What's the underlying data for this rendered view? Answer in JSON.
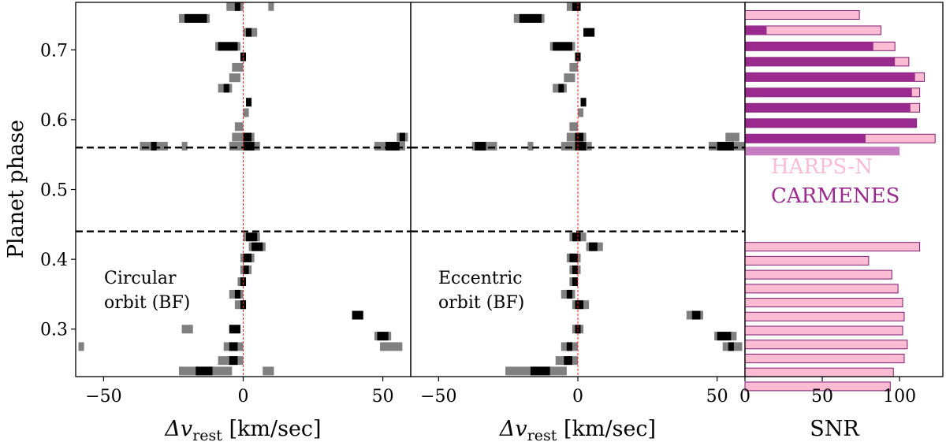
{
  "chart_data": [
    {
      "type": "heatmap",
      "panel": "circular",
      "annotation": [
        "Circular",
        "orbit (BF)"
      ],
      "ylabel": "Planet phase",
      "xlabel_main": "Δv",
      "xlabel_sub": "rest",
      "xlabel_unit": " [km/sec]",
      "xlim": [
        -60,
        60
      ],
      "ylim": [
        0.232,
        0.768
      ],
      "xticks": [
        -50,
        0,
        50
      ],
      "xtick_labels": [
        "−50",
        "0",
        "50"
      ],
      "yticks": [
        0.3,
        0.4,
        0.5,
        0.6,
        0.7
      ],
      "ytick_labels": [
        "0.3",
        "0.4",
        "0.5",
        "0.6",
        "0.7"
      ],
      "dashed_lines": [
        0.56,
        0.44
      ],
      "rest_line_x": 0,
      "cells": [
        {
          "phase": 0.762,
          "x0": -6,
          "x1": 0,
          "level": "gray"
        },
        {
          "phase": 0.762,
          "x0": -3,
          "x1": -1,
          "level": "black"
        },
        {
          "phase": 0.762,
          "x0": 9,
          "x1": 11,
          "level": "gray"
        },
        {
          "phase": 0.745,
          "x0": -23,
          "x1": -12,
          "level": "gray"
        },
        {
          "phase": 0.745,
          "x0": -21,
          "x1": -13,
          "level": "black"
        },
        {
          "phase": 0.725,
          "x0": 0,
          "x1": 5,
          "level": "gray"
        },
        {
          "phase": 0.725,
          "x0": 1,
          "x1": 3,
          "level": "black"
        },
        {
          "phase": 0.705,
          "x0": -10,
          "x1": -1,
          "level": "gray"
        },
        {
          "phase": 0.705,
          "x0": -9,
          "x1": -2,
          "level": "black"
        },
        {
          "phase": 0.69,
          "x0": -1,
          "x1": 1,
          "level": "black"
        },
        {
          "phase": 0.675,
          "x0": -4,
          "x1": 0,
          "level": "gray"
        },
        {
          "phase": 0.66,
          "x0": -5,
          "x1": -1,
          "level": "gray"
        },
        {
          "phase": 0.645,
          "x0": -9,
          "x1": -4,
          "level": "gray"
        },
        {
          "phase": 0.645,
          "x0": -7,
          "x1": -5,
          "level": "black"
        },
        {
          "phase": 0.625,
          "x0": 1,
          "x1": 3,
          "level": "black"
        },
        {
          "phase": 0.61,
          "x0": 0,
          "x1": 2,
          "level": "gray"
        },
        {
          "phase": 0.59,
          "x0": -3,
          "x1": 0,
          "level": "gray"
        },
        {
          "phase": 0.575,
          "x0": -4,
          "x1": 4,
          "level": "gray"
        },
        {
          "phase": 0.575,
          "x0": 0,
          "x1": 3,
          "level": "black"
        },
        {
          "phase": 0.575,
          "x0": 55,
          "x1": 59,
          "level": "gray"
        },
        {
          "phase": 0.575,
          "x0": 56,
          "x1": 58,
          "level": "black"
        },
        {
          "phase": 0.562,
          "x0": -37,
          "x1": -27,
          "level": "gray"
        },
        {
          "phase": 0.562,
          "x0": -33,
          "x1": -31,
          "level": "black"
        },
        {
          "phase": 0.562,
          "x0": -22,
          "x1": -20,
          "level": "gray"
        },
        {
          "phase": 0.562,
          "x0": -5,
          "x1": 6,
          "level": "gray"
        },
        {
          "phase": 0.562,
          "x0": 0,
          "x1": 4,
          "level": "black"
        },
        {
          "phase": 0.562,
          "x0": 47,
          "x1": 58,
          "level": "gray"
        },
        {
          "phase": 0.562,
          "x0": 51,
          "x1": 56,
          "level": "black"
        },
        {
          "phase": 0.432,
          "x0": 0,
          "x1": 6,
          "level": "gray"
        },
        {
          "phase": 0.432,
          "x0": 1,
          "x1": 5,
          "level": "black"
        },
        {
          "phase": 0.418,
          "x0": 2,
          "x1": 8,
          "level": "gray"
        },
        {
          "phase": 0.418,
          "x0": 3,
          "x1": 7,
          "level": "black"
        },
        {
          "phase": 0.402,
          "x0": -1,
          "x1": 4,
          "level": "gray"
        },
        {
          "phase": 0.402,
          "x0": 0,
          "x1": 3,
          "level": "black"
        },
        {
          "phase": 0.385,
          "x0": -1,
          "x1": 3,
          "level": "gray"
        },
        {
          "phase": 0.385,
          "x0": 0,
          "x1": 2,
          "level": "black"
        },
        {
          "phase": 0.368,
          "x0": -2,
          "x1": 1,
          "level": "gray"
        },
        {
          "phase": 0.368,
          "x0": -1,
          "x1": 1,
          "level": "black"
        },
        {
          "phase": 0.35,
          "x0": -5,
          "x1": 0,
          "level": "gray"
        },
        {
          "phase": 0.35,
          "x0": -3,
          "x1": -1,
          "level": "black"
        },
        {
          "phase": 0.335,
          "x0": -3,
          "x1": 1,
          "level": "gray"
        },
        {
          "phase": 0.335,
          "x0": -1,
          "x1": 1,
          "level": "black"
        },
        {
          "phase": 0.32,
          "x0": 39,
          "x1": 43,
          "level": "black"
        },
        {
          "phase": 0.3,
          "x0": -22,
          "x1": -18,
          "level": "gray"
        },
        {
          "phase": 0.3,
          "x0": -5,
          "x1": -1,
          "level": "black"
        },
        {
          "phase": 0.29,
          "x0": 47,
          "x1": 53,
          "level": "gray"
        },
        {
          "phase": 0.29,
          "x0": 48,
          "x1": 52,
          "level": "black"
        },
        {
          "phase": 0.275,
          "x0": -7,
          "x1": 0,
          "level": "gray"
        },
        {
          "phase": 0.275,
          "x0": -5,
          "x1": -2,
          "level": "black"
        },
        {
          "phase": 0.275,
          "x0": -59,
          "x1": -57,
          "level": "gray"
        },
        {
          "phase": 0.275,
          "x0": 49,
          "x1": 57,
          "level": "gray"
        },
        {
          "phase": 0.255,
          "x0": -9,
          "x1": 0,
          "level": "gray"
        },
        {
          "phase": 0.255,
          "x0": -5,
          "x1": -2,
          "level": "black"
        },
        {
          "phase": 0.24,
          "x0": -23,
          "x1": -4,
          "level": "gray"
        },
        {
          "phase": 0.24,
          "x0": -17,
          "x1": -11,
          "level": "black"
        },
        {
          "phase": 0.24,
          "x0": 7,
          "x1": 11,
          "level": "gray"
        }
      ]
    },
    {
      "type": "heatmap",
      "panel": "eccentric",
      "annotation": [
        "Eccentric",
        "orbit (BF)"
      ],
      "xlabel_main": "Δv",
      "xlabel_sub": "rest",
      "xlabel_unit": " [km/sec]",
      "xlim": [
        -60,
        60
      ],
      "ylim": [
        0.232,
        0.768
      ],
      "xticks": [
        -50,
        0,
        50
      ],
      "xtick_labels": [
        "−50",
        "0",
        "50"
      ],
      "dashed_lines": [
        0.56,
        0.44
      ],
      "rest_line_x": 0,
      "cells": [
        {
          "phase": 0.762,
          "x0": -4,
          "x1": 1,
          "level": "gray"
        },
        {
          "phase": 0.762,
          "x0": -2,
          "x1": 1,
          "level": "black"
        },
        {
          "phase": 0.745,
          "x0": -23,
          "x1": -12,
          "level": "gray"
        },
        {
          "phase": 0.745,
          "x0": -21,
          "x1": -13,
          "level": "black"
        },
        {
          "phase": 0.725,
          "x0": 2,
          "x1": 6,
          "level": "black"
        },
        {
          "phase": 0.705,
          "x0": -10,
          "x1": -1,
          "level": "gray"
        },
        {
          "phase": 0.705,
          "x0": -9,
          "x1": -2,
          "level": "black"
        },
        {
          "phase": 0.69,
          "x0": -1,
          "x1": 1,
          "level": "black"
        },
        {
          "phase": 0.675,
          "x0": -3,
          "x1": 0,
          "level": "gray"
        },
        {
          "phase": 0.66,
          "x0": -5,
          "x1": -1,
          "level": "gray"
        },
        {
          "phase": 0.645,
          "x0": -9,
          "x1": -4,
          "level": "gray"
        },
        {
          "phase": 0.645,
          "x0": -7,
          "x1": -5,
          "level": "black"
        },
        {
          "phase": 0.625,
          "x0": 1,
          "x1": 3,
          "level": "black"
        },
        {
          "phase": 0.61,
          "x0": 0,
          "x1": 2,
          "level": "gray"
        },
        {
          "phase": 0.59,
          "x0": -3,
          "x1": 0,
          "level": "gray"
        },
        {
          "phase": 0.575,
          "x0": -4,
          "x1": 3,
          "level": "gray"
        },
        {
          "phase": 0.575,
          "x0": -1,
          "x1": 2,
          "level": "black"
        },
        {
          "phase": 0.575,
          "x0": 53,
          "x1": 58,
          "level": "gray"
        },
        {
          "phase": 0.562,
          "x0": -38,
          "x1": -32,
          "level": "gray"
        },
        {
          "phase": 0.562,
          "x0": -37,
          "x1": -33,
          "level": "black"
        },
        {
          "phase": 0.562,
          "x0": -32,
          "x1": -29,
          "level": "gray"
        },
        {
          "phase": 0.562,
          "x0": -18,
          "x1": -16,
          "level": "gray"
        },
        {
          "phase": 0.562,
          "x0": -6,
          "x1": 5,
          "level": "gray"
        },
        {
          "phase": 0.562,
          "x0": -1,
          "x1": 3,
          "level": "black"
        },
        {
          "phase": 0.562,
          "x0": 47,
          "x1": 60,
          "level": "gray"
        },
        {
          "phase": 0.562,
          "x0": 50,
          "x1": 56,
          "level": "black"
        },
        {
          "phase": 0.432,
          "x0": -3,
          "x1": 3,
          "level": "gray"
        },
        {
          "phase": 0.432,
          "x0": -2,
          "x1": 1,
          "level": "black"
        },
        {
          "phase": 0.418,
          "x0": 3,
          "x1": 9,
          "level": "gray"
        },
        {
          "phase": 0.418,
          "x0": 4,
          "x1": 7,
          "level": "black"
        },
        {
          "phase": 0.402,
          "x0": -4,
          "x1": 1,
          "level": "gray"
        },
        {
          "phase": 0.402,
          "x0": -3,
          "x1": 0,
          "level": "black"
        },
        {
          "phase": 0.385,
          "x0": -3,
          "x1": 1,
          "level": "gray"
        },
        {
          "phase": 0.385,
          "x0": -2,
          "x1": 0,
          "level": "black"
        },
        {
          "phase": 0.368,
          "x0": -3,
          "x1": 0,
          "level": "gray"
        },
        {
          "phase": 0.368,
          "x0": -2,
          "x1": 0,
          "level": "black"
        },
        {
          "phase": 0.35,
          "x0": -6,
          "x1": -1,
          "level": "gray"
        },
        {
          "phase": 0.35,
          "x0": -4,
          "x1": -2,
          "level": "black"
        },
        {
          "phase": 0.335,
          "x0": -2,
          "x1": 4,
          "level": "gray"
        },
        {
          "phase": 0.335,
          "x0": -1,
          "x1": 2,
          "level": "black"
        },
        {
          "phase": 0.32,
          "x0": 39,
          "x1": 45,
          "level": "gray"
        },
        {
          "phase": 0.32,
          "x0": 41,
          "x1": 44,
          "level": "black"
        },
        {
          "phase": 0.3,
          "x0": -2,
          "x1": 2,
          "level": "gray"
        },
        {
          "phase": 0.3,
          "x0": -1,
          "x1": 1,
          "level": "black"
        },
        {
          "phase": 0.29,
          "x0": 49,
          "x1": 57,
          "level": "gray"
        },
        {
          "phase": 0.29,
          "x0": 50,
          "x1": 55,
          "level": "black"
        },
        {
          "phase": 0.275,
          "x0": -6,
          "x1": 0,
          "level": "gray"
        },
        {
          "phase": 0.275,
          "x0": -4,
          "x1": -2,
          "level": "black"
        },
        {
          "phase": 0.275,
          "x0": 52,
          "x1": 59,
          "level": "gray"
        },
        {
          "phase": 0.275,
          "x0": 54,
          "x1": 56,
          "level": "black"
        },
        {
          "phase": 0.255,
          "x0": -8,
          "x1": 0,
          "level": "gray"
        },
        {
          "phase": 0.255,
          "x0": -5,
          "x1": -2,
          "level": "black"
        },
        {
          "phase": 0.24,
          "x0": -26,
          "x1": -4,
          "level": "gray"
        },
        {
          "phase": 0.24,
          "x0": -17,
          "x1": -10,
          "level": "black"
        }
      ]
    },
    {
      "type": "bar",
      "panel": "snr",
      "orientation": "horizontal",
      "xlabel": "SNR",
      "xlim": [
        0,
        128
      ],
      "ylim": [
        0.232,
        0.768
      ],
      "xticks": [
        0,
        50,
        100
      ],
      "xtick_labels": [
        "0",
        "50",
        "100"
      ],
      "legend": {
        "placement": "center-right",
        "entries": [
          "HARPS-N",
          "CARMENES"
        ]
      },
      "colors": {
        "harps": "#fbbcd3",
        "carmenes": "#9b2a8e",
        "carmenes_light": "#c57cc1",
        "harps_edge": "#7d1a72"
      },
      "series": [
        {
          "name": "HARPS-N",
          "phases": [
            0.75,
            0.728,
            0.705,
            0.683,
            0.661,
            0.639,
            0.617,
            0.595,
            0.573,
            0.418,
            0.398,
            0.378,
            0.358,
            0.338,
            0.318,
            0.298,
            0.278,
            0.258,
            0.238,
            0.218
          ],
          "values": [
            74,
            88,
            97,
            106,
            116,
            113,
            113,
            111,
            123,
            113,
            80,
            95,
            99,
            102,
            103,
            102,
            105,
            103,
            96,
            94
          ]
        },
        {
          "name": "CARMENES",
          "phases": [
            0.75,
            0.728,
            0.705,
            0.683,
            0.661,
            0.639,
            0.617,
            0.595,
            0.573,
            0.555
          ],
          "values": [
            0,
            14,
            83,
            97,
            110,
            108,
            107,
            111,
            78,
            100
          ]
        }
      ]
    }
  ]
}
